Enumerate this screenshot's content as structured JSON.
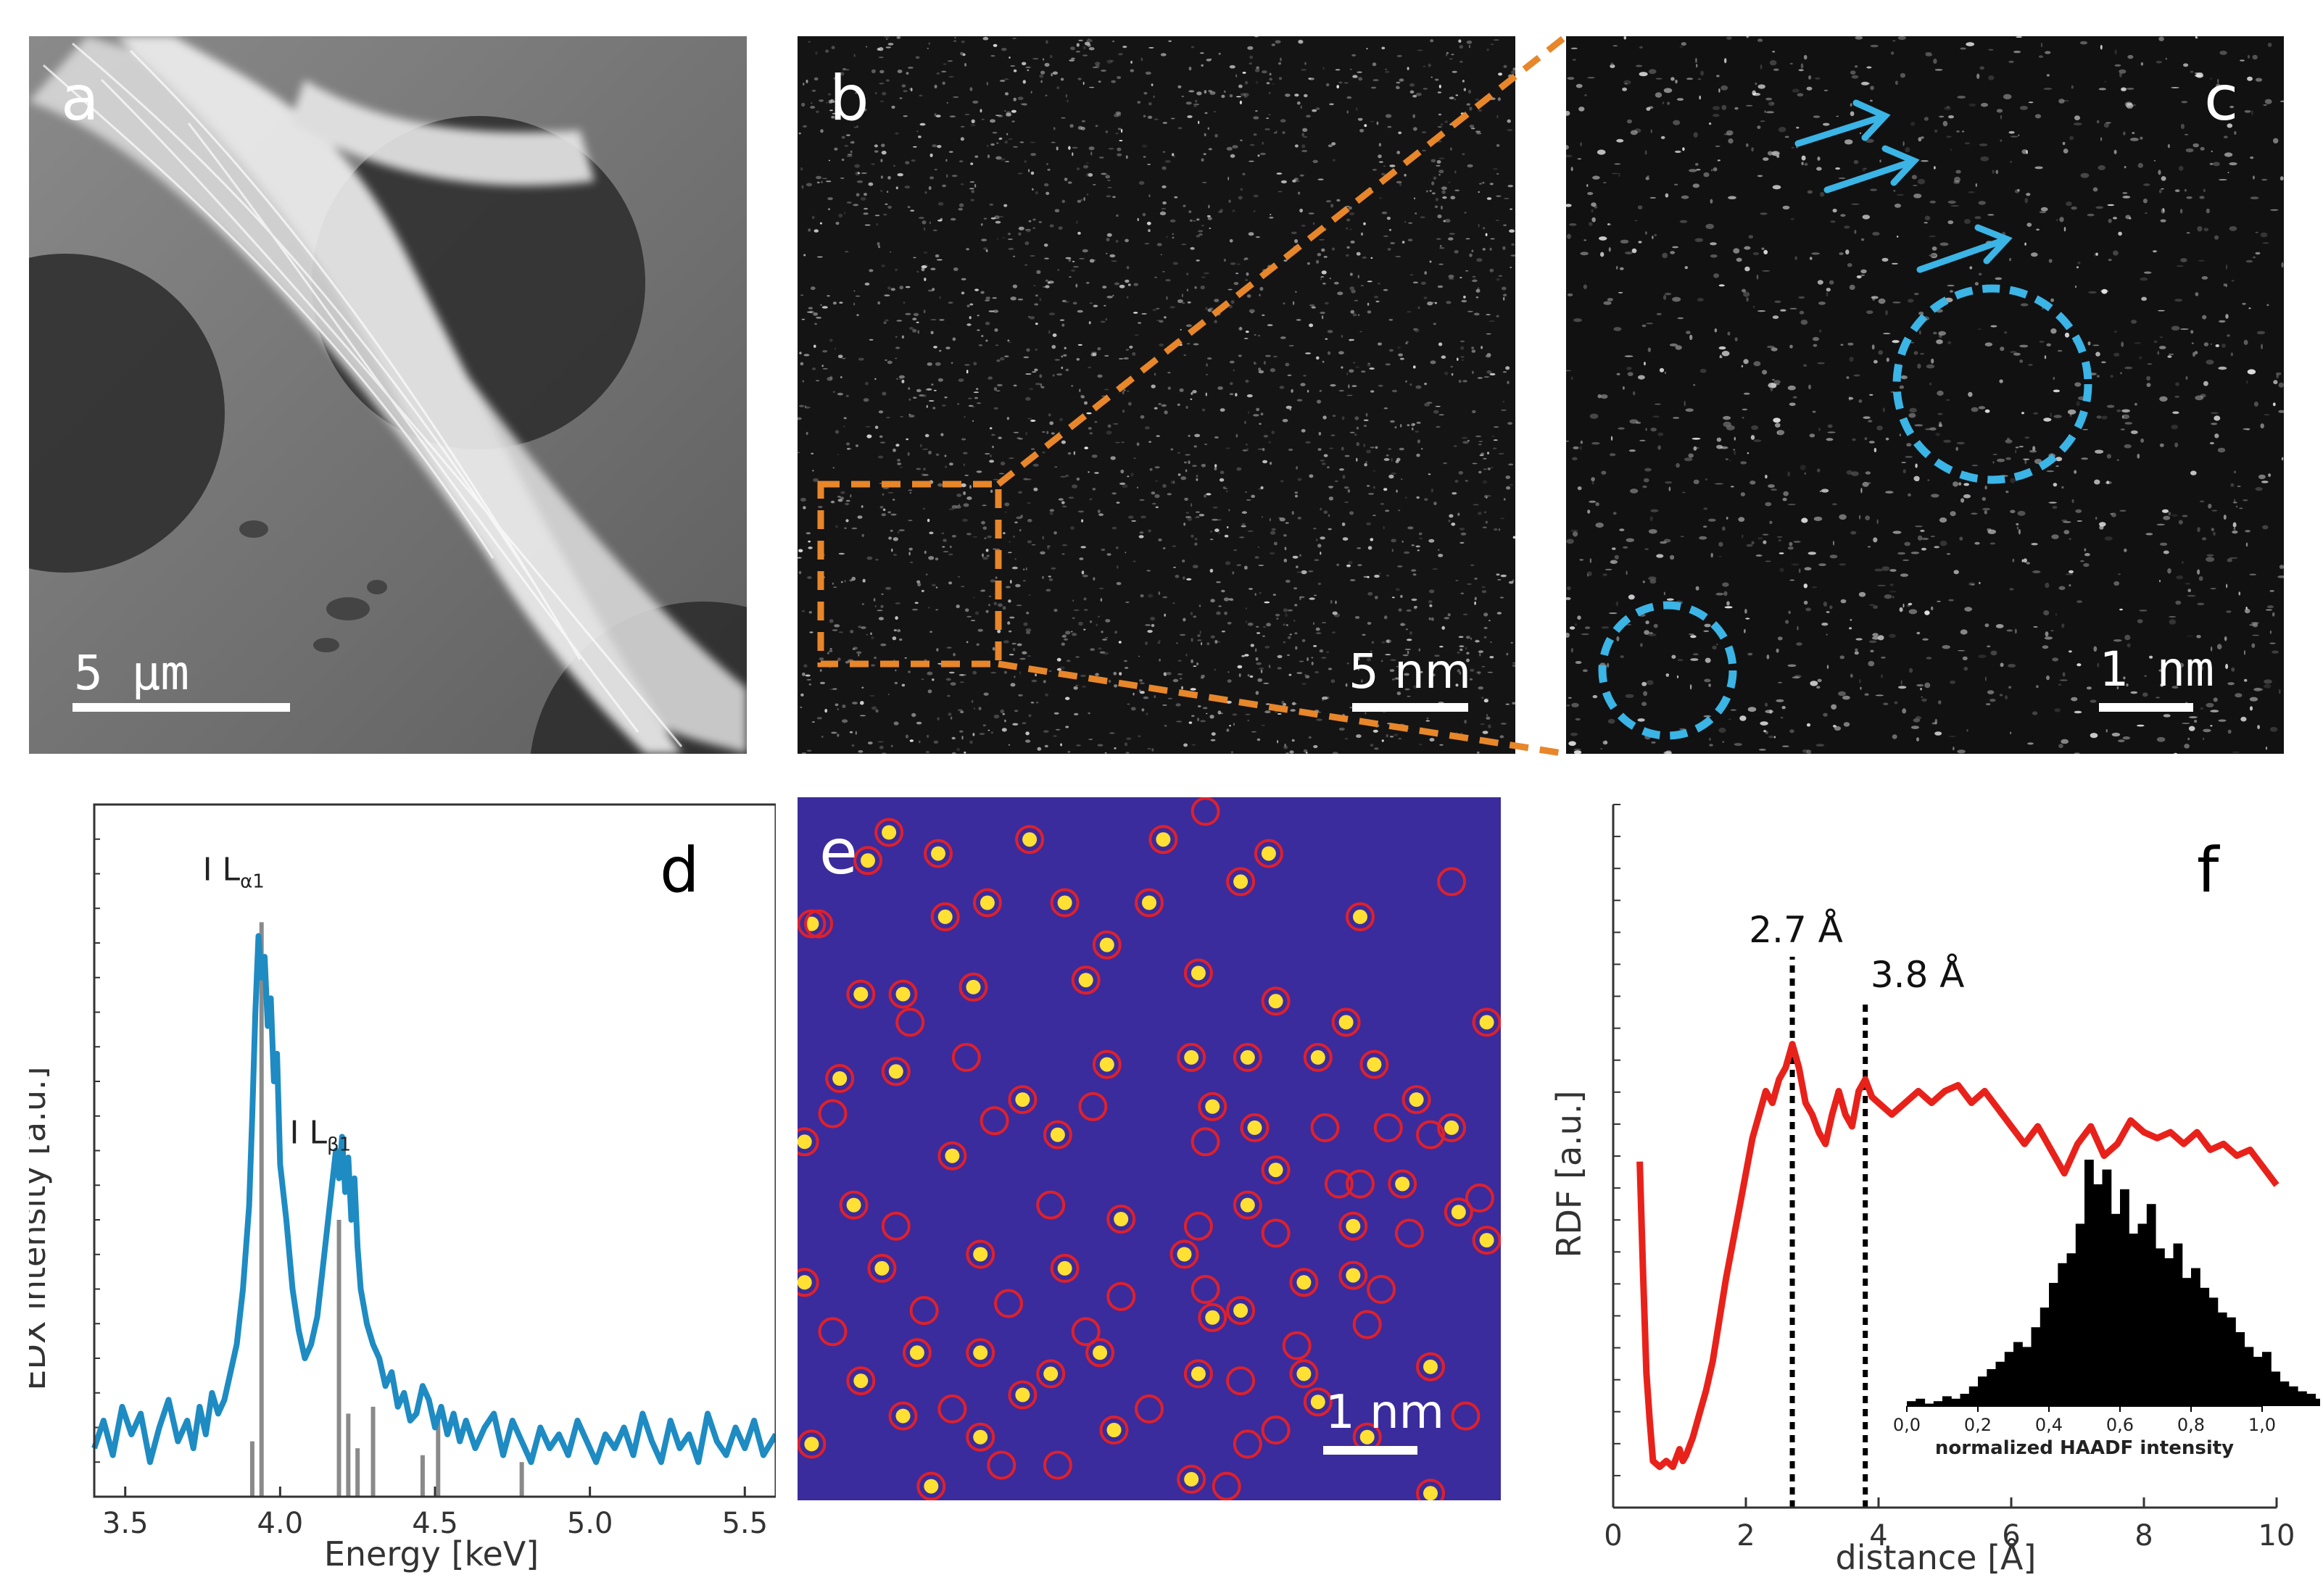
{
  "panels": {
    "a": {
      "letter": "a",
      "scale": "5  µm"
    },
    "b": {
      "letter": "b",
      "scale": "5 nm"
    },
    "c": {
      "letter": "c",
      "scale": "1  nm"
    },
    "d": {
      "letter": "d"
    },
    "e": {
      "letter": "e",
      "scale": "1 nm"
    },
    "f": {
      "letter": "f"
    }
  },
  "colors": {
    "edx_line": "#1e8bc3",
    "rdf_line": "#e8221a",
    "highlight_orange": "#e8862a",
    "highlight_cyan": "#3bb4e6",
    "map_bg": "#3a2c9c",
    "atom_yellow": "#ffe033",
    "atom_ring": "#e0202a"
  },
  "chart_data": [
    {
      "panel": "d",
      "type": "line",
      "title": "",
      "xlabel": "Energy [keV]",
      "ylabel": "EDX intensity [a.u.]",
      "xlim": [
        3.4,
        5.6
      ],
      "ylim": [
        0,
        100
      ],
      "xticks": [
        "3.5",
        "4.0",
        "4.5",
        "5.0",
        "5.5"
      ],
      "xtick_values": [
        3.5,
        4.0,
        4.5,
        5.0,
        5.5
      ],
      "annotations": [
        {
          "text": "I L",
          "sub": "α1",
          "x": 3.92,
          "y": 88
        },
        {
          "text": "I L",
          "sub": "β1",
          "x": 4.2,
          "y": 50
        }
      ],
      "reference_lines": [
        {
          "x": 3.94,
          "h": 83
        },
        {
          "x": 3.91,
          "h": 8
        },
        {
          "x": 4.19,
          "h": 40
        },
        {
          "x": 4.22,
          "h": 12
        },
        {
          "x": 4.25,
          "h": 7
        },
        {
          "x": 4.3,
          "h": 13
        },
        {
          "x": 4.46,
          "h": 6
        },
        {
          "x": 4.51,
          "h": 12
        },
        {
          "x": 4.78,
          "h": 5
        }
      ],
      "series": [
        {
          "name": "EDX spectrum",
          "x": [
            3.4,
            3.43,
            3.46,
            3.49,
            3.52,
            3.55,
            3.58,
            3.61,
            3.64,
            3.67,
            3.7,
            3.72,
            3.74,
            3.76,
            3.78,
            3.8,
            3.82,
            3.84,
            3.86,
            3.88,
            3.9,
            3.91,
            3.92,
            3.93,
            3.94,
            3.95,
            3.96,
            3.97,
            3.98,
            3.99,
            4.0,
            4.02,
            4.04,
            4.06,
            4.08,
            4.1,
            4.12,
            4.14,
            4.16,
            4.18,
            4.19,
            4.2,
            4.21,
            4.22,
            4.23,
            4.24,
            4.25,
            4.26,
            4.28,
            4.3,
            4.32,
            4.34,
            4.36,
            4.38,
            4.4,
            4.42,
            4.44,
            4.46,
            4.48,
            4.5,
            4.52,
            4.54,
            4.56,
            4.58,
            4.6,
            4.63,
            4.66,
            4.69,
            4.72,
            4.75,
            4.78,
            4.81,
            4.84,
            4.87,
            4.9,
            4.93,
            4.96,
            4.99,
            5.02,
            5.05,
            5.08,
            5.11,
            5.14,
            5.17,
            5.2,
            5.23,
            5.26,
            5.29,
            5.32,
            5.35,
            5.38,
            5.41,
            5.44,
            5.47,
            5.5,
            5.53,
            5.56,
            5.6
          ],
          "values": [
            7,
            11,
            6,
            13,
            9,
            12,
            5,
            10,
            14,
            8,
            11,
            7,
            13,
            9,
            15,
            12,
            14,
            18,
            22,
            30,
            42,
            55,
            70,
            81,
            75,
            78,
            68,
            72,
            60,
            64,
            48,
            40,
            30,
            24,
            20,
            22,
            26,
            34,
            42,
            50,
            46,
            52,
            44,
            49,
            40,
            46,
            36,
            30,
            25,
            22,
            20,
            16,
            18,
            13,
            15,
            11,
            12,
            16,
            14,
            10,
            13,
            9,
            12,
            8,
            11,
            7,
            10,
            12,
            6,
            11,
            8,
            5,
            10,
            7,
            9,
            6,
            11,
            8,
            5,
            9,
            7,
            10,
            6,
            12,
            8,
            5,
            11,
            7,
            9,
            5,
            12,
            8,
            6,
            10,
            7,
            11,
            6,
            9
          ]
        }
      ]
    },
    {
      "panel": "f",
      "type": "line",
      "title": "",
      "xlabel": "distance [Å]",
      "ylabel": "RDF [a.u.]",
      "xlim": [
        0,
        10
      ],
      "ylim": [
        0,
        100
      ],
      "xticks": [
        "0",
        "2",
        "4",
        "6",
        "8",
        "10"
      ],
      "xtick_values": [
        0,
        2,
        4,
        6,
        8,
        10
      ],
      "peak_markers": [
        {
          "x": 2.7,
          "label": "2.7 Å"
        },
        {
          "x": 3.8,
          "label": "3.8 Å"
        }
      ],
      "series": [
        {
          "name": "RDF",
          "x": [
            0.4,
            0.45,
            0.5,
            0.55,
            0.6,
            0.7,
            0.8,
            0.9,
            1.0,
            1.05,
            1.1,
            1.2,
            1.3,
            1.4,
            1.5,
            1.6,
            1.7,
            1.8,
            1.9,
            2.0,
            2.1,
            2.2,
            2.3,
            2.4,
            2.5,
            2.6,
            2.7,
            2.8,
            2.9,
            3.0,
            3.1,
            3.2,
            3.3,
            3.4,
            3.5,
            3.6,
            3.7,
            3.8,
            3.9,
            4.0,
            4.2,
            4.4,
            4.6,
            4.8,
            5.0,
            5.2,
            5.4,
            5.6,
            5.8,
            6.0,
            6.2,
            6.4,
            6.6,
            6.8,
            7.0,
            7.2,
            7.4,
            7.6,
            7.8,
            8.0,
            8.2,
            8.4,
            8.6,
            8.8,
            9.0,
            9.2,
            9.4,
            9.6,
            9.8,
            10.0
          ],
          "values": [
            54,
            35,
            18,
            10,
            3,
            2,
            3,
            2,
            5,
            3,
            4,
            7,
            11,
            15,
            20,
            27,
            34,
            40,
            46,
            52,
            58,
            62,
            66,
            64,
            68,
            70,
            74,
            70,
            64,
            62,
            59,
            57,
            62,
            66,
            62,
            60,
            66,
            68,
            65,
            64,
            62,
            64,
            66,
            64,
            66,
            67,
            64,
            66,
            63,
            60,
            57,
            60,
            56,
            52,
            57,
            60,
            55,
            57,
            61,
            59,
            58,
            59,
            57,
            59,
            56,
            57,
            55,
            56,
            53,
            50
          ]
        }
      ],
      "inset": {
        "type": "bar",
        "xlabel": "normalized HAADF intensity",
        "xticks": [
          "0,0",
          "0,2",
          "0,4",
          "0,6",
          "0,8",
          "1,0"
        ],
        "xtick_values": [
          0,
          0.2,
          0.4,
          0.6,
          0.8,
          1.0
        ],
        "bin_width": 0.025,
        "values": [
          2,
          3,
          1,
          2,
          4,
          3,
          5,
          8,
          12,
          15,
          18,
          22,
          26,
          24,
          32,
          40,
          50,
          58,
          62,
          74,
          100,
          90,
          96,
          78,
          88,
          70,
          74,
          82,
          64,
          60,
          66,
          52,
          56,
          48,
          44,
          38,
          36,
          30,
          24,
          20,
          22,
          14,
          10,
          8,
          6,
          5,
          3,
          2
        ]
      }
    }
  ],
  "panel_e_atoms": {
    "filled": [
      [
        0.13,
        0.05
      ],
      [
        0.1,
        0.09
      ],
      [
        0.2,
        0.08
      ],
      [
        0.33,
        0.06
      ],
      [
        0.52,
        0.06
      ],
      [
        0.67,
        0.08
      ],
      [
        0.21,
        0.17
      ],
      [
        0.38,
        0.15
      ],
      [
        0.5,
        0.15
      ],
      [
        0.63,
        0.12
      ],
      [
        0.8,
        0.17
      ],
      [
        0.02,
        0.18
      ],
      [
        0.27,
        0.15
      ],
      [
        0.09,
        0.28
      ],
      [
        0.15,
        0.28
      ],
      [
        0.25,
        0.27
      ],
      [
        0.41,
        0.26
      ],
      [
        0.44,
        0.21
      ],
      [
        0.57,
        0.25
      ],
      [
        0.68,
        0.29
      ],
      [
        0.78,
        0.32
      ],
      [
        0.98,
        0.32
      ],
      [
        0.06,
        0.4
      ],
      [
        0.14,
        0.39
      ],
      [
        0.32,
        0.43
      ],
      [
        0.44,
        0.38
      ],
      [
        0.56,
        0.37
      ],
      [
        0.64,
        0.37
      ],
      [
        0.74,
        0.37
      ],
      [
        0.82,
        0.38
      ],
      [
        0.88,
        0.43
      ],
      [
        0.93,
        0.47
      ],
      [
        0.01,
        0.49
      ],
      [
        0.22,
        0.51
      ],
      [
        0.37,
        0.48
      ],
      [
        0.59,
        0.44
      ],
      [
        0.65,
        0.47
      ],
      [
        0.68,
        0.53
      ],
      [
        0.86,
        0.55
      ],
      [
        0.08,
        0.58
      ],
      [
        0.26,
        0.65
      ],
      [
        0.46,
        0.6
      ],
      [
        0.64,
        0.58
      ],
      [
        0.79,
        0.61
      ],
      [
        0.94,
        0.59
      ],
      [
        0.01,
        0.69
      ],
      [
        0.12,
        0.67
      ],
      [
        0.38,
        0.67
      ],
      [
        0.55,
        0.65
      ],
      [
        0.72,
        0.69
      ],
      [
        0.79,
        0.68
      ],
      [
        0.98,
        0.63
      ],
      [
        0.63,
        0.73
      ],
      [
        0.17,
        0.79
      ],
      [
        0.26,
        0.79
      ],
      [
        0.43,
        0.79
      ],
      [
        0.59,
        0.74
      ],
      [
        0.09,
        0.83
      ],
      [
        0.36,
        0.82
      ],
      [
        0.57,
        0.82
      ],
      [
        0.72,
        0.82
      ],
      [
        0.9,
        0.81
      ],
      [
        0.15,
        0.88
      ],
      [
        0.32,
        0.85
      ],
      [
        0.74,
        0.86
      ],
      [
        0.02,
        0.92
      ],
      [
        0.26,
        0.91
      ],
      [
        0.45,
        0.9
      ],
      [
        0.81,
        0.91
      ],
      [
        0.19,
        0.98
      ],
      [
        0.56,
        0.97
      ],
      [
        0.9,
        0.99
      ]
    ],
    "rings": [
      [
        0.03,
        0.18
      ],
      [
        0.16,
        0.32
      ],
      [
        0.24,
        0.37
      ],
      [
        0.05,
        0.45
      ],
      [
        0.42,
        0.44
      ],
      [
        0.28,
        0.46
      ],
      [
        0.58,
        0.49
      ],
      [
        0.75,
        0.47
      ],
      [
        0.77,
        0.55
      ],
      [
        0.8,
        0.55
      ],
      [
        0.84,
        0.47
      ],
      [
        0.9,
        0.48
      ],
      [
        0.14,
        0.61
      ],
      [
        0.36,
        0.58
      ],
      [
        0.57,
        0.61
      ],
      [
        0.68,
        0.62
      ],
      [
        0.87,
        0.62
      ],
      [
        0.97,
        0.57
      ],
      [
        0.46,
        0.71
      ],
      [
        0.58,
        0.7
      ],
      [
        0.83,
        0.7
      ],
      [
        0.18,
        0.73
      ],
      [
        0.3,
        0.72
      ],
      [
        0.71,
        0.78
      ],
      [
        0.05,
        0.76
      ],
      [
        0.41,
        0.76
      ],
      [
        0.81,
        0.75
      ],
      [
        0.63,
        0.83
      ],
      [
        0.68,
        0.9
      ],
      [
        0.29,
        0.95
      ],
      [
        0.37,
        0.95
      ],
      [
        0.61,
        0.98
      ],
      [
        0.95,
        0.88
      ],
      [
        0.5,
        0.87
      ],
      [
        0.22,
        0.87
      ],
      [
        0.64,
        0.92
      ],
      [
        0.93,
        0.12
      ],
      [
        0.58,
        0.02
      ]
    ]
  }
}
